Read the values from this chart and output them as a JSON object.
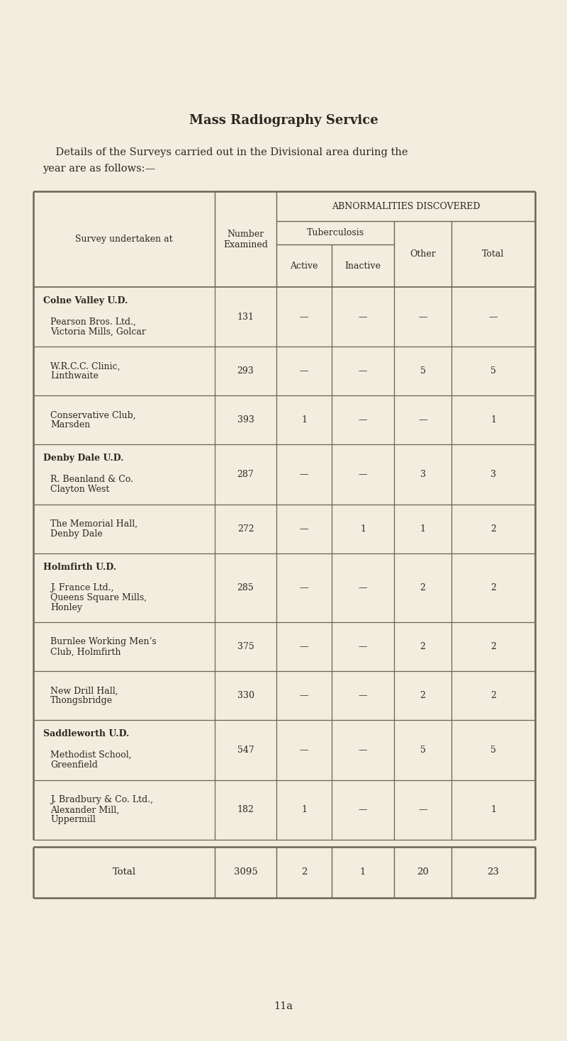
{
  "title": "Mass Radiography Service",
  "subtitle_line1": "    Details of the Surveys carried out in the Divisional area during the",
  "subtitle_line2": "year are as follows:—",
  "page_number": "11a",
  "bg_color": "#f3ede0",
  "header_abnorm": "ABNORMALITIES DISCOVERED",
  "header_tb": "Tuberculosis",
  "header_active": "Active",
  "header_inactive": "Inactive",
  "header_other": "Other",
  "header_total": "Total",
  "header_survey": "Survey undertaken at",
  "header_number": "Number\nExamined",
  "sections": [
    {
      "district": "Colne Valley U.D.",
      "rows": [
        {
          "name_lines": [
            "Pearson Bros. Ltd.,",
            "Victoria Mills, Golcar"
          ],
          "number": "131",
          "active": "—",
          "inactive": "—",
          "other": "—",
          "total": "—"
        },
        {
          "name_lines": [
            "W.R.C.C. Clinic,",
            "Linthwaite"
          ],
          "number": "293",
          "active": "—",
          "inactive": "—",
          "other": "5",
          "total": "5"
        },
        {
          "name_lines": [
            "Conservative Club,",
            "Marsden"
          ],
          "number": "393",
          "active": "1",
          "inactive": "—",
          "other": "—",
          "total": "1"
        }
      ]
    },
    {
      "district": "Denby Dale U.D.",
      "rows": [
        {
          "name_lines": [
            "R. Beanland & Co.",
            "Clayton West"
          ],
          "number": "287",
          "active": "—",
          "inactive": "—",
          "other": "3",
          "total": "3"
        },
        {
          "name_lines": [
            "The Memorial Hall,",
            "Denby Dale"
          ],
          "number": "272",
          "active": "—",
          "inactive": "1",
          "other": "1",
          "total": "2"
        }
      ]
    },
    {
      "district": "Holmfirth U.D.",
      "rows": [
        {
          "name_lines": [
            "J. France Ltd.,",
            "Queens Square Mills,",
            "Honley"
          ],
          "number": "285",
          "active": "—",
          "inactive": "—",
          "other": "2",
          "total": "2"
        },
        {
          "name_lines": [
            "Burnlee Working Men’s",
            "Club, Holmfirth"
          ],
          "number": "375",
          "active": "—",
          "inactive": "—",
          "other": "2",
          "total": "2"
        },
        {
          "name_lines": [
            "New Drill Hall,",
            "Thongsbridge"
          ],
          "number": "330",
          "active": "—",
          "inactive": "—",
          "other": "2",
          "total": "2"
        }
      ]
    },
    {
      "district": "Saddleworth U.D.",
      "rows": [
        {
          "name_lines": [
            "Methodist School,",
            "Greenfield"
          ],
          "number": "547",
          "active": "—",
          "inactive": "—",
          "other": "5",
          "total": "5"
        },
        {
          "name_lines": [
            "J. Bradbury & Co. Ltd.,",
            "Alexander Mill,",
            "Uppermill"
          ],
          "number": "182",
          "active": "1",
          "inactive": "—",
          "other": "—",
          "total": "1"
        }
      ]
    }
  ],
  "total_row": {
    "label": "Total",
    "number": "3095",
    "active": "2",
    "inactive": "1",
    "other": "20",
    "total": "23"
  }
}
